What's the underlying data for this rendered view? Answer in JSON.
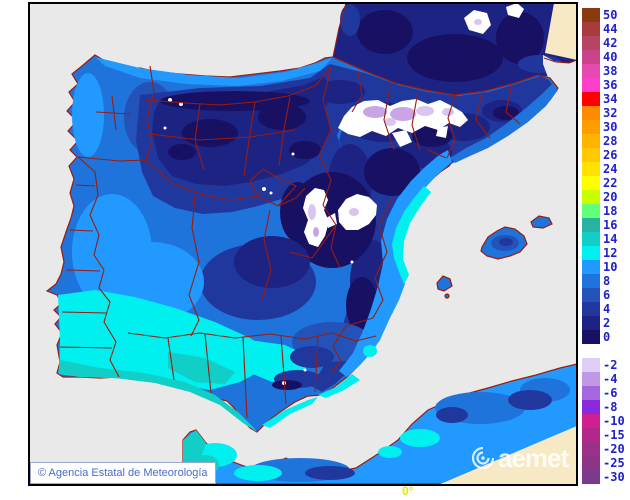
{
  "map": {
    "attribution": "© Agencia Estatal de Meteorología",
    "watermark": "aemet",
    "lon_label": "0°",
    "sea_color": "#E9E9E9",
    "out_of_domain_land_color": "#F6E9C3",
    "border_line_color": "#9B1B0F",
    "frame_color": "#000000",
    "snow_color": "#FFFFFF"
  },
  "legend": {
    "label_color": "#2020CC",
    "entries": [
      {
        "label": "50",
        "color": "#8B3A0F"
      },
      {
        "label": "44",
        "color": "#A83C3C"
      },
      {
        "label": "42",
        "color": "#B54563"
      },
      {
        "label": "40",
        "color": "#C94489"
      },
      {
        "label": "38",
        "color": "#E34BB0"
      },
      {
        "label": "36",
        "color": "#FF3FCC"
      },
      {
        "label": "34",
        "color": "#FF0000"
      },
      {
        "label": "32",
        "color": "#FF8A00"
      },
      {
        "label": "30",
        "color": "#FF9D00"
      },
      {
        "label": "28",
        "color": "#FFB400"
      },
      {
        "label": "26",
        "color": "#FFC900"
      },
      {
        "label": "24",
        "color": "#FFE200"
      },
      {
        "label": "22",
        "color": "#FFFF00"
      },
      {
        "label": "20",
        "color": "#C8FF00"
      },
      {
        "label": "18",
        "color": "#62FF78"
      },
      {
        "label": "16",
        "color": "#29B2A2"
      },
      {
        "label": "14",
        "color": "#11CEC6"
      },
      {
        "label": "12",
        "color": "#00EFEF"
      },
      {
        "label": "10",
        "color": "#2199FF"
      },
      {
        "label": "8",
        "color": "#1F74DB"
      },
      {
        "label": "6",
        "color": "#2353B8"
      },
      {
        "label": "4",
        "color": "#20389E"
      },
      {
        "label": "2",
        "color": "#1C2383"
      },
      {
        "label": "0",
        "color": "#181063"
      },
      {
        "label": "",
        "color": "#FFFFFF"
      },
      {
        "label": "-2",
        "color": "#DECDF4"
      },
      {
        "label": "-4",
        "color": "#BF99E6"
      },
      {
        "label": "-6",
        "color": "#A667DE"
      },
      {
        "label": "-8",
        "color": "#8729DC"
      },
      {
        "label": "-10",
        "color": "#CE2090"
      },
      {
        "label": "-15",
        "color": "#B1288A"
      },
      {
        "label": "-20",
        "color": "#9C2F87"
      },
      {
        "label": "-25",
        "color": "#8C3488"
      },
      {
        "label": "-30",
        "color": "#7B3A8D"
      }
    ]
  }
}
